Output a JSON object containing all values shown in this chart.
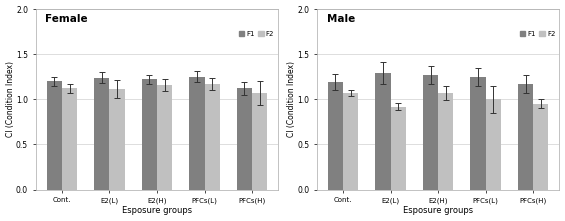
{
  "categories": [
    "Cont.",
    "E2(L)",
    "E2(H)",
    "PFCs(L)",
    "PFCs(H)"
  ],
  "female_F1_means": [
    1.2,
    1.24,
    1.22,
    1.25,
    1.12
  ],
  "female_F1_errors": [
    0.05,
    0.06,
    0.05,
    0.06,
    0.07
  ],
  "female_F2_means": [
    1.12,
    1.11,
    1.16,
    1.17,
    1.07
  ],
  "female_F2_errors": [
    0.05,
    0.1,
    0.07,
    0.07,
    0.13
  ],
  "male_F1_means": [
    1.19,
    1.29,
    1.27,
    1.25,
    1.17
  ],
  "male_F1_errors": [
    0.09,
    0.12,
    0.1,
    0.1,
    0.1
  ],
  "male_F2_means": [
    1.07,
    0.92,
    1.07,
    1.0,
    0.95
  ],
  "male_F2_errors": [
    0.03,
    0.04,
    0.08,
    0.15,
    0.05
  ],
  "color_F1": "#808080",
  "color_F2": "#c0c0c0",
  "ylabel": "CI (Condition Index)",
  "xlabel": "Esposure groups",
  "ylim": [
    0.0,
    2.0
  ],
  "yticks": [
    0.0,
    0.5,
    1.0,
    1.5,
    2.0
  ],
  "title_female": "Female",
  "title_male": "Male",
  "legend_labels": [
    "F1",
    "F2"
  ],
  "bar_width": 0.32,
  "background_color": "#ffffff",
  "grid_color": "#d8d8d8"
}
